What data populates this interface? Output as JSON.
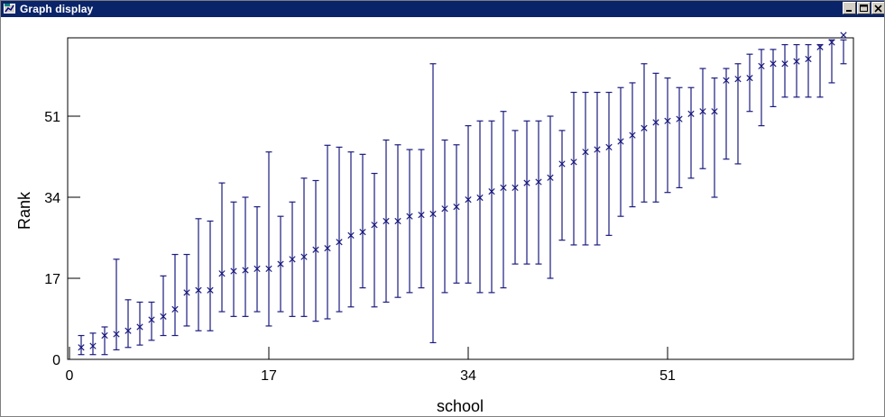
{
  "window": {
    "title": "Graph display",
    "icons": {
      "app": "graph-window-icon",
      "minimize": "minimize-icon",
      "maximize": "maximize-icon",
      "close": "close-icon"
    },
    "title_bar_color": "#0a246a"
  },
  "chart_data": {
    "type": "scatter",
    "title": "",
    "xlabel": "school",
    "ylabel": "Rank",
    "xlim": [
      0,
      67
    ],
    "ylim": [
      0,
      67
    ],
    "xticks": [
      0,
      17,
      34,
      51
    ],
    "yticks": [
      0,
      17,
      34,
      51
    ],
    "grid": false,
    "marker": "x",
    "color": "#1c1c80",
    "series": [
      {
        "x": [
          1,
          2,
          3,
          4,
          5,
          6,
          7,
          8,
          9,
          10,
          11,
          12,
          13,
          14,
          15,
          16,
          17,
          18,
          19,
          20,
          21,
          22,
          23,
          24,
          25,
          26,
          27,
          28,
          29,
          30,
          31,
          32,
          33,
          34,
          35,
          36,
          37,
          38,
          39,
          40,
          41,
          42,
          43,
          44,
          45,
          46,
          47,
          48,
          49,
          50,
          51,
          52,
          53,
          54,
          55,
          56,
          57,
          58,
          59,
          60,
          61,
          62,
          63,
          64,
          65,
          66
        ],
        "y": [
          2.5,
          2.8,
          5.0,
          5.3,
          6.0,
          6.8,
          8.3,
          9.0,
          10.5,
          14.0,
          14.5,
          14.5,
          18.0,
          18.5,
          18.7,
          19.0,
          19.0,
          20.0,
          21.0,
          21.5,
          23.0,
          23.3,
          24.6,
          26.0,
          26.7,
          28.2,
          29.0,
          29.0,
          30.0,
          30.3,
          30.5,
          31.6,
          32.0,
          33.5,
          33.9,
          35.2,
          36.0,
          36.0,
          37.0,
          37.2,
          38.1,
          41.0,
          41.4,
          43.5,
          44.0,
          44.5,
          45.7,
          47.0,
          48.5,
          49.7,
          50.0,
          50.4,
          51.5,
          52.0,
          52.0,
          58.5,
          58.8,
          59.0,
          61.5,
          62.0,
          62.0,
          62.5,
          63.0,
          65.5,
          66.5,
          68.0
        ],
        "lower": [
          1,
          1,
          1,
          2,
          2.5,
          3,
          4,
          5,
          5,
          7,
          6,
          6,
          10,
          9,
          9,
          10,
          7,
          10,
          9,
          9,
          8,
          8.5,
          10,
          11,
          15,
          11,
          12,
          13,
          14,
          15,
          3.5,
          14,
          16,
          16,
          14,
          14,
          15,
          20,
          20,
          20,
          17,
          25,
          24,
          24,
          24,
          26,
          30,
          32,
          33,
          33,
          35,
          36,
          38,
          40,
          34,
          42,
          41,
          52,
          49,
          53,
          55,
          55,
          55,
          55,
          58,
          62
        ],
        "upper": [
          5,
          5.5,
          6.8,
          21,
          12.5,
          12,
          12,
          17.5,
          22,
          22,
          29.5,
          29,
          37,
          33,
          34,
          32,
          43.5,
          30,
          33,
          38,
          37.5,
          44.9,
          44.5,
          43.5,
          43,
          39,
          46,
          45,
          44,
          44,
          62,
          46,
          45,
          49,
          50,
          50,
          52,
          48,
          50,
          50,
          51,
          48,
          56,
          56,
          56,
          56,
          57,
          58,
          62,
          60,
          59,
          57,
          57,
          61,
          59,
          61,
          62,
          64,
          65,
          65,
          66,
          66,
          66,
          66,
          67,
          67
        ]
      }
    ]
  }
}
